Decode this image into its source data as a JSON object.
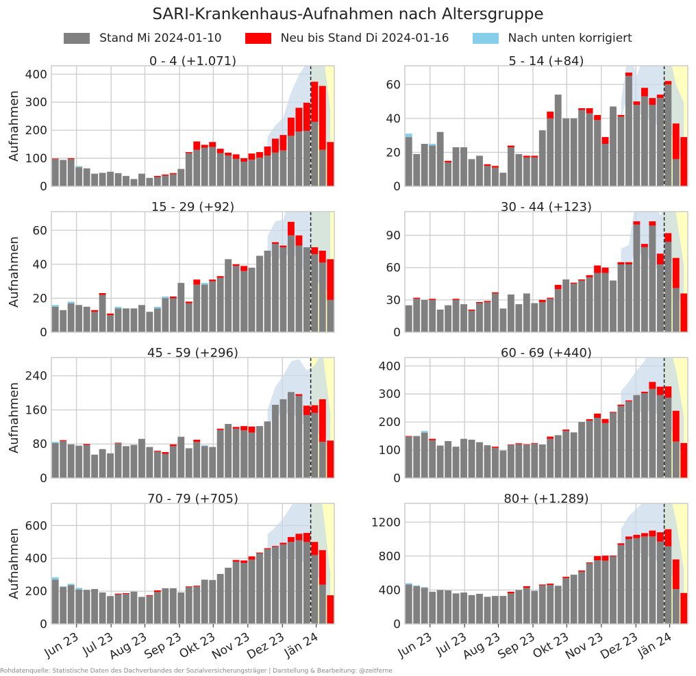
{
  "title": "SARI-Krankenhaus-Aufnahmen nach Altersgruppe",
  "legend": [
    {
      "label": "Stand Mi 2024-01-10",
      "color": "#808080"
    },
    {
      "label": "Neu bis Stand Di 2024-01-16",
      "color": "#ff0000"
    },
    {
      "label": "Nach unten korrigiert",
      "color": "#87ceeb"
    }
  ],
  "footer": "Rohdatenquelle: Statistische Daten des Dachverbandes der Sozialversicherungsträger | Darstellung & Bearbeitung: @zeitferne",
  "ylabel": "Aufnahmen",
  "xticks": [
    "Jun 23",
    "Jul 23",
    "Aug 23",
    "Sep 23",
    "Okt 23",
    "Nov 23",
    "Dez 23",
    "Jän 24"
  ],
  "colors": {
    "base": "#808080",
    "new": "#ff0000",
    "corrected": "#87ceeb",
    "band": "#c8daea",
    "forecast": "#ffffc0"
  },
  "chart_data": [
    {
      "type": "bar",
      "title": "0 - 4 (+1.071)",
      "ylim": [
        0,
        430
      ],
      "yticks": [
        0,
        100,
        200,
        300,
        400
      ],
      "base": [
        97,
        94,
        97,
        68,
        64,
        45,
        48,
        52,
        47,
        37,
        26,
        45,
        30,
        33,
        38,
        43,
        62,
        118,
        130,
        138,
        140,
        118,
        110,
        98,
        88,
        95,
        102,
        110,
        120,
        128,
        180,
        195,
        198,
        230,
        130,
        0
      ],
      "new": [
        2,
        0,
        3,
        0,
        0,
        0,
        0,
        0,
        0,
        0,
        0,
        0,
        0,
        4,
        4,
        4,
        0,
        4,
        30,
        10,
        18,
        16,
        10,
        16,
        12,
        22,
        20,
        32,
        50,
        55,
        65,
        85,
        100,
        143,
        228,
        158
      ],
      "corr": [
        0,
        0,
        0,
        4,
        0,
        0,
        0,
        0,
        0,
        0,
        0,
        0,
        0,
        0,
        0,
        0,
        0,
        0,
        0,
        0,
        0,
        0,
        0,
        0,
        0,
        0,
        0,
        0,
        0,
        0,
        0,
        0,
        0,
        0,
        0,
        0
      ]
    },
    {
      "type": "bar",
      "title": "5 - 14 (+84)",
      "ylim": [
        0,
        71
      ],
      "yticks": [
        0,
        20,
        40,
        60
      ],
      "base": [
        29,
        19,
        25,
        24,
        32,
        14,
        23,
        23,
        16,
        18,
        12,
        11,
        8,
        23,
        19,
        17,
        17,
        33,
        40,
        54,
        40,
        40,
        45,
        43,
        39,
        25,
        47,
        41,
        65,
        48,
        53,
        48,
        52,
        60,
        16,
        0
      ],
      "new": [
        0,
        0,
        0,
        0,
        0,
        1,
        0,
        0,
        0,
        0,
        1,
        1,
        0,
        1,
        0,
        1,
        1,
        0,
        4,
        0,
        0,
        0,
        1,
        3,
        3,
        4,
        0,
        1,
        2,
        2,
        5,
        4,
        2,
        2,
        21,
        29
      ],
      "corr": [
        2,
        0,
        0,
        1,
        0,
        0,
        0,
        0,
        0,
        0,
        0,
        0,
        0,
        0,
        0,
        0,
        0,
        0,
        0,
        0,
        0,
        0,
        0,
        0,
        0,
        0,
        0,
        0,
        0,
        0,
        0,
        0,
        0,
        0,
        0,
        0
      ]
    },
    {
      "type": "bar",
      "title": "15 - 29 (+92)",
      "ylim": [
        0,
        71
      ],
      "yticks": [
        0,
        20,
        40,
        60
      ],
      "base": [
        15,
        13,
        17,
        16,
        15,
        12,
        22,
        10,
        14,
        14,
        14,
        16,
        12,
        14,
        20,
        20,
        29,
        17,
        28,
        28,
        30,
        32,
        43,
        39,
        36,
        38,
        45,
        48,
        52,
        50,
        57,
        51,
        50,
        46,
        41,
        19
      ],
      "new": [
        0,
        0,
        0,
        0,
        0,
        1,
        1,
        1,
        0,
        0,
        0,
        0,
        0,
        0,
        0,
        1,
        0,
        1,
        3,
        0,
        1,
        1,
        0,
        1,
        3,
        0,
        0,
        0,
        1,
        1,
        8,
        6,
        0,
        4,
        7,
        24
      ],
      "corr": [
        1,
        0,
        1,
        0,
        0,
        0,
        0,
        0,
        1,
        0,
        0,
        0,
        0,
        1,
        1,
        1,
        0,
        0,
        0,
        1,
        0,
        0,
        0,
        0,
        0,
        0,
        0,
        0,
        0,
        0,
        0,
        0,
        0,
        0,
        0,
        0
      ]
    },
    {
      "type": "bar",
      "title": "30 - 44 (+123)",
      "ylim": [
        0,
        112
      ],
      "yticks": [
        0,
        30,
        60,
        90
      ],
      "base": [
        25,
        31,
        30,
        30,
        21,
        25,
        30,
        26,
        20,
        27,
        28,
        36,
        22,
        35,
        26,
        36,
        27,
        28,
        31,
        40,
        49,
        45,
        48,
        51,
        55,
        55,
        48,
        63,
        63,
        100,
        79,
        99,
        63,
        84,
        41,
        0
      ],
      "new": [
        0,
        1,
        0,
        1,
        0,
        0,
        1,
        0,
        1,
        1,
        1,
        1,
        0,
        0,
        0,
        0,
        0,
        2,
        1,
        4,
        0,
        1,
        1,
        2,
        7,
        5,
        0,
        2,
        2,
        3,
        3,
        4,
        10,
        8,
        28,
        36
      ],
      "corr": [
        0,
        0,
        0,
        0,
        0,
        0,
        0,
        0,
        0,
        0,
        1,
        0,
        0,
        0,
        0,
        0,
        0,
        0,
        0,
        0,
        0,
        0,
        0,
        0,
        0,
        0,
        0,
        0,
        0,
        0,
        0,
        0,
        0,
        0,
        0,
        0
      ]
    },
    {
      "type": "bar",
      "title": "45 - 59 (+296)",
      "ylim": [
        0,
        283
      ],
      "yticks": [
        0,
        80,
        160,
        240
      ],
      "base": [
        82,
        87,
        79,
        76,
        78,
        55,
        68,
        58,
        82,
        75,
        78,
        92,
        73,
        62,
        57,
        75,
        97,
        70,
        85,
        75,
        73,
        113,
        127,
        116,
        112,
        107,
        122,
        133,
        172,
        185,
        202,
        193,
        148,
        153,
        85,
        0
      ],
      "new": [
        0,
        2,
        0,
        0,
        2,
        0,
        0,
        0,
        1,
        0,
        0,
        0,
        0,
        2,
        4,
        4,
        0,
        0,
        5,
        0,
        0,
        3,
        0,
        4,
        10,
        14,
        0,
        0,
        0,
        0,
        0,
        4,
        22,
        18,
        100,
        88
      ],
      "corr": [
        3,
        0,
        0,
        0,
        0,
        0,
        0,
        0,
        0,
        0,
        0,
        0,
        0,
        0,
        0,
        0,
        0,
        0,
        0,
        2,
        0,
        0,
        0,
        0,
        0,
        0,
        0,
        0,
        0,
        0,
        0,
        0,
        0,
        0,
        0,
        0
      ]
    },
    {
      "type": "bar",
      "title": "60 - 69 (+440)",
      "ylim": [
        0,
        430
      ],
      "yticks": [
        0,
        100,
        200,
        300,
        400
      ],
      "base": [
        148,
        150,
        162,
        135,
        116,
        132,
        112,
        140,
        137,
        128,
        117,
        108,
        98,
        118,
        121,
        119,
        123,
        120,
        140,
        153,
        168,
        163,
        200,
        205,
        215,
        196,
        233,
        257,
        273,
        296,
        303,
        318,
        296,
        287,
        130,
        0
      ],
      "new": [
        2,
        0,
        0,
        5,
        0,
        0,
        0,
        0,
        0,
        0,
        0,
        4,
        0,
        2,
        3,
        2,
        2,
        0,
        8,
        0,
        5,
        0,
        0,
        5,
        15,
        15,
        3,
        5,
        4,
        0,
        5,
        25,
        30,
        40,
        110,
        125
      ],
      "corr": [
        0,
        0,
        6,
        3,
        0,
        0,
        0,
        0,
        0,
        0,
        0,
        0,
        0,
        0,
        0,
        0,
        0,
        0,
        0,
        0,
        0,
        0,
        0,
        0,
        0,
        0,
        0,
        0,
        0,
        0,
        0,
        0,
        0,
        0,
        0,
        0
      ]
    },
    {
      "type": "bar",
      "title": "70 - 79 (+705)",
      "ylim": [
        0,
        735
      ],
      "yticks": [
        0,
        200,
        400,
        600
      ],
      "base": [
        270,
        225,
        237,
        210,
        208,
        213,
        192,
        170,
        180,
        183,
        197,
        165,
        170,
        195,
        218,
        218,
        192,
        224,
        228,
        270,
        268,
        305,
        343,
        380,
        372,
        392,
        430,
        457,
        470,
        485,
        500,
        510,
        500,
        420,
        240,
        0
      ],
      "new": [
        0,
        0,
        0,
        0,
        0,
        0,
        0,
        0,
        5,
        5,
        0,
        0,
        5,
        10,
        0,
        0,
        0,
        5,
        5,
        0,
        0,
        0,
        0,
        10,
        15,
        20,
        5,
        5,
        5,
        10,
        30,
        40,
        55,
        80,
        210,
        175
      ],
      "corr": [
        15,
        5,
        8,
        10,
        0,
        0,
        0,
        0,
        0,
        0,
        0,
        0,
        0,
        0,
        0,
        0,
        0,
        0,
        0,
        0,
        0,
        0,
        0,
        0,
        0,
        0,
        0,
        0,
        0,
        0,
        0,
        0,
        0,
        0,
        0,
        0
      ]
    },
    {
      "type": "bar",
      "title": "80+ (+1.289)",
      "ylim": [
        0,
        1420
      ],
      "yticks": [
        0,
        400,
        800,
        1200
      ],
      "base": [
        465,
        445,
        425,
        380,
        400,
        395,
        360,
        370,
        340,
        355,
        320,
        330,
        330,
        360,
        400,
        425,
        390,
        455,
        460,
        450,
        540,
        580,
        615,
        715,
        750,
        745,
        795,
        930,
        1000,
        1010,
        1030,
        1030,
        970,
        915,
        410,
        0
      ],
      "new": [
        0,
        0,
        0,
        0,
        0,
        0,
        0,
        0,
        0,
        0,
        0,
        0,
        0,
        20,
        0,
        20,
        0,
        10,
        15,
        0,
        15,
        0,
        15,
        10,
        50,
        60,
        10,
        20,
        30,
        40,
        40,
        70,
        110,
        200,
        350,
        365
      ],
      "corr": [
        15,
        10,
        10,
        0,
        0,
        0,
        0,
        0,
        0,
        0,
        0,
        0,
        0,
        0,
        0,
        0,
        0,
        0,
        0,
        0,
        0,
        0,
        0,
        0,
        0,
        0,
        0,
        0,
        0,
        0,
        0,
        0,
        0,
        0,
        0,
        0
      ]
    }
  ]
}
